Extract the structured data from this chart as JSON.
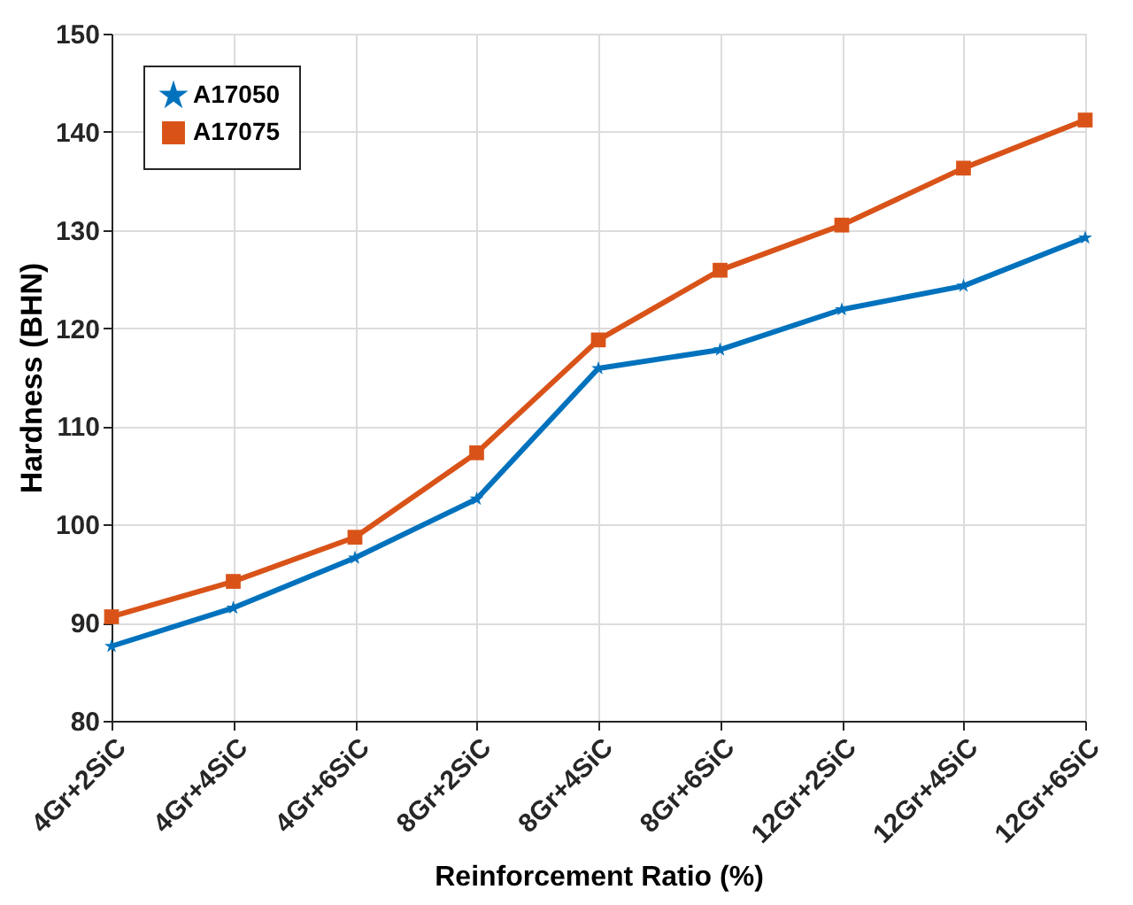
{
  "chart_data": {
    "type": "line",
    "xlabel": "Reinforcement Ratio (%)",
    "ylabel": "Hardness (BHN)",
    "categories": [
      "4Gr+2SiC",
      "4Gr+4SiC",
      "4Gr+6SiC",
      "8Gr+2SiC",
      "8Gr+4SiC",
      "8Gr+6SiC",
      "12Gr+2SiC",
      "12Gr+4SiC",
      "12Gr+6SiC"
    ],
    "series": [
      {
        "name": "A17050",
        "color": "#0072bd",
        "marker": "star",
        "values": [
          87.6,
          91.5,
          96.6,
          102.6,
          115.9,
          117.8,
          121.9,
          124.3,
          129.2
        ]
      },
      {
        "name": "A17075",
        "color": "#d95319",
        "marker": "square",
        "values": [
          90.6,
          94.2,
          98.7,
          107.3,
          118.8,
          125.9,
          130.5,
          136.3,
          141.2
        ]
      }
    ],
    "ylim": [
      80,
      150
    ],
    "yticks": [
      80,
      90,
      100,
      110,
      120,
      130,
      140,
      150
    ],
    "grid": true,
    "legend": "top left",
    "line_style": "solid"
  }
}
